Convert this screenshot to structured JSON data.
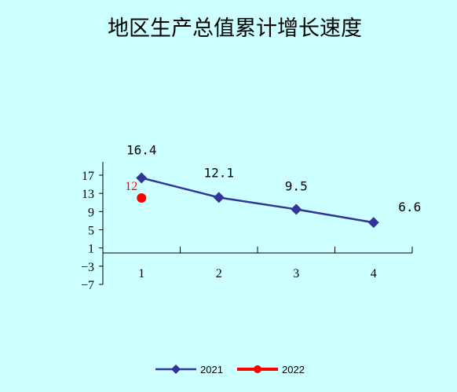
{
  "chart_data": {
    "type": "line",
    "title": "地区生产总值累计增长速度",
    "xlabel": "",
    "ylabel": "",
    "categories": [
      "1",
      "2",
      "3",
      "4"
    ],
    "y_ticks": [
      "17",
      "13",
      "9",
      "5",
      "1",
      "−3",
      "−7"
    ],
    "ylim": [
      -7,
      19
    ],
    "grid": false,
    "legend_position": "bottom",
    "series": [
      {
        "name": "2021",
        "color": "#333399",
        "marker": "diamond",
        "values": [
          16.4,
          12.1,
          9.5,
          6.6
        ],
        "labels": [
          "16.4",
          "12.1",
          "9.5",
          "6.6"
        ]
      },
      {
        "name": "2022",
        "color": "#ff0000",
        "marker": "circle",
        "values": [
          12,
          null,
          null,
          null
        ],
        "labels": [
          "12",
          null,
          null,
          null
        ]
      }
    ]
  }
}
